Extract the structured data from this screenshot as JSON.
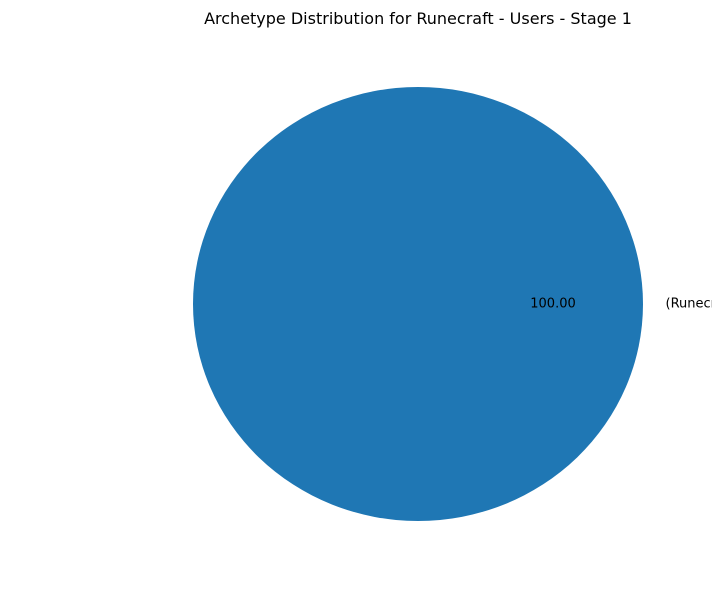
{
  "chart_data": {
    "type": "pie",
    "title": "Archetype Distribution for Runecraft - Users - Stage 1",
    "slices": [
      {
        "label": "(Runecraft, Spellboost)",
        "value": 100.0,
        "display": "100.00",
        "color": "#1f77b4"
      }
    ],
    "legend": "none",
    "grid": false
  }
}
